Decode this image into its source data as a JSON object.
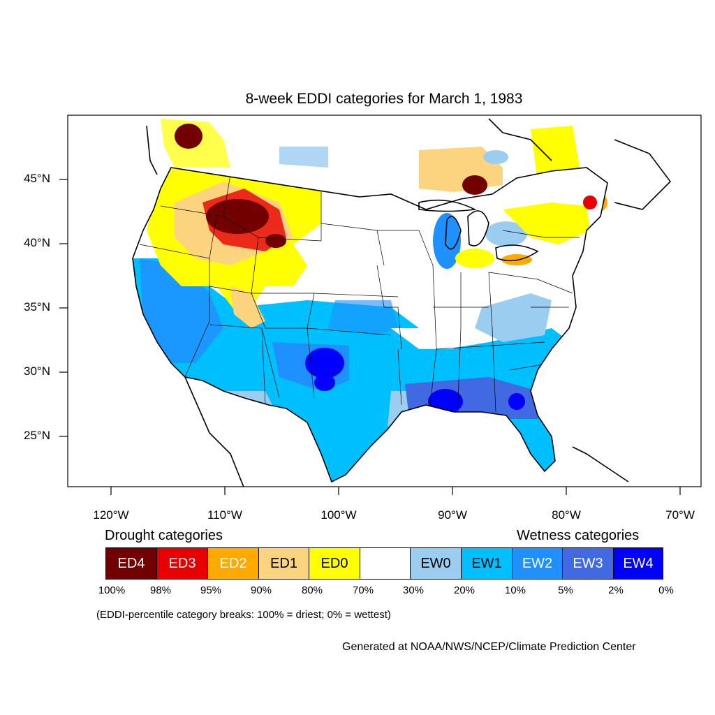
{
  "title": "8-week EDDI categories for March 1, 1983",
  "lat_labels": [
    "45°N",
    "40°N",
    "35°N",
    "30°N",
    "25°N"
  ],
  "lon_labels": [
    "120°W",
    "110°W",
    "100°W",
    "90°W",
    "80°W",
    "70°W"
  ],
  "legend": {
    "drought_heading": "Drought categories",
    "wetness_heading": "Wetness categories",
    "categories": [
      {
        "label": "ED4",
        "color": "#730000",
        "text_color": "#ffffff"
      },
      {
        "label": "ED3",
        "color": "#e60000",
        "text_color": "#ffffff"
      },
      {
        "label": "ED2",
        "color": "#ffaa00",
        "text_color": "#ffffff"
      },
      {
        "label": "ED1",
        "color": "#fcd37f",
        "text_color": "#000000"
      },
      {
        "label": "ED0",
        "color": "#ffff00",
        "text_color": "#000000"
      },
      {
        "label": "",
        "color": "#ffffff",
        "text_color": "#000000"
      },
      {
        "label": "EW0",
        "color": "#9bcdf0",
        "text_color": "#000000"
      },
      {
        "label": "EW1",
        "color": "#00bfff",
        "text_color": "#000000"
      },
      {
        "label": "EW2",
        "color": "#1e90ff",
        "text_color": "#ffffff"
      },
      {
        "label": "EW3",
        "color": "#4169e1",
        "text_color": "#ffffff"
      },
      {
        "label": "EW4",
        "color": "#0000ff",
        "text_color": "#ffffff"
      }
    ],
    "breaks": [
      "100%",
      "98%",
      "95%",
      "90%",
      "80%",
      "70%",
      "30%",
      "20%",
      "10%",
      "5%",
      "2%",
      "0%"
    ]
  },
  "note": "(EDDI-percentile category breaks: 100% = driest; 0% = wettest)",
  "credit": "Generated at NOAA/NWS/NCEP/Climate Prediction Center"
}
